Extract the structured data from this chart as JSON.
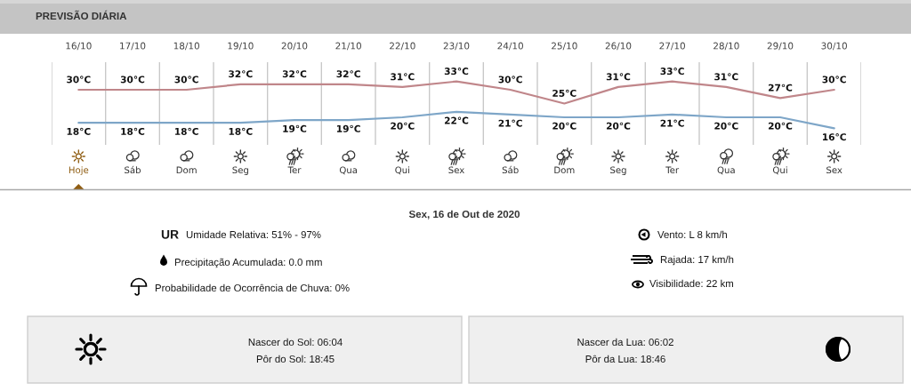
{
  "chart_data": [
    {
      "type": "line",
      "title": "PREVISÃO DIÁRIA",
      "categories": [
        "16/10",
        "17/10",
        "18/10",
        "19/10",
        "20/10",
        "21/10",
        "22/10",
        "23/10",
        "24/10",
        "25/10",
        "26/10",
        "27/10",
        "28/10",
        "29/10",
        "30/10"
      ],
      "series": [
        {
          "color": "#c0868a",
          "values": [
            30,
            30,
            30,
            32,
            32,
            32,
            31,
            33,
            30,
            25,
            31,
            33,
            31,
            27,
            30
          ],
          "value_labels": [
            "30°C",
            "30°C",
            "30°C",
            "32°C",
            "32°C",
            "32°C",
            "31°C",
            "33°C",
            "30°C",
            "25°C",
            "31°C",
            "33°C",
            "31°C",
            "27°C",
            "30°C"
          ]
        },
        {
          "color": "#7ea6c8",
          "values": [
            18,
            18,
            18,
            18,
            19,
            19,
            20,
            22,
            21,
            20,
            20,
            21,
            20,
            20,
            16
          ],
          "value_labels": [
            "18°C",
            "18°C",
            "18°C",
            "18°C",
            "19°C",
            "19°C",
            "20°C",
            "22°C",
            "21°C",
            "20°C",
            "20°C",
            "21°C",
            "20°C",
            "20°C",
            "16°C"
          ]
        }
      ],
      "ylim": [
        10,
        40
      ],
      "grid": "x",
      "tick_labels": "x",
      "annotations": [
        "Hoje",
        "Sáb",
        "Dom",
        "Seg",
        "Ter",
        "Qua",
        "Qui",
        "Sex",
        "Sáb",
        "Dom",
        "Seg",
        "Ter",
        "Qua",
        "Qui",
        "Sex"
      ]
    },
    {
      "type": "other",
      "title": "Sex, 16 de Out de 2020",
      "annotations": [
        "UR",
        "Umidade Relativa: 51% - 97%",
        "Precipitação Acumulada: 0.0 mm",
        "Probabilidade de Ocorrência de Chuva: 0%",
        "Vento: L 8 km/h",
        "Rajada: 17 km/h",
        "Visibilidade: 22 km",
        "Nascer do Sol: 06:04",
        "Pôr do Sol: 18:45",
        "Nascer da Lua: 06:02",
        "Pôr da Lua: 18:46"
      ]
    }
  ]
}
